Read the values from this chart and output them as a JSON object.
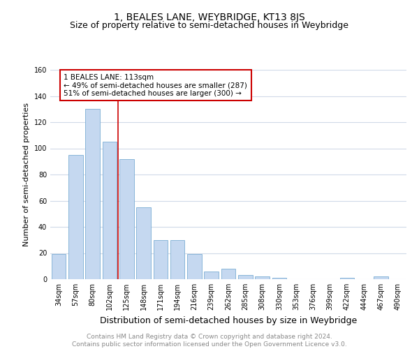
{
  "title": "1, BEALES LANE, WEYBRIDGE, KT13 8JS",
  "subtitle": "Size of property relative to semi-detached houses in Weybridge",
  "xlabel": "Distribution of semi-detached houses by size in Weybridge",
  "ylabel": "Number of semi-detached properties",
  "categories": [
    "34sqm",
    "57sqm",
    "80sqm",
    "102sqm",
    "125sqm",
    "148sqm",
    "171sqm",
    "194sqm",
    "216sqm",
    "239sqm",
    "262sqm",
    "285sqm",
    "308sqm",
    "330sqm",
    "353sqm",
    "376sqm",
    "399sqm",
    "422sqm",
    "444sqm",
    "467sqm",
    "490sqm"
  ],
  "values": [
    19,
    95,
    130,
    105,
    92,
    55,
    30,
    30,
    19,
    6,
    8,
    3,
    2,
    1,
    0,
    0,
    0,
    1,
    0,
    2,
    0
  ],
  "bar_color": "#c5d8f0",
  "bar_edge_color": "#7badd4",
  "vline_color": "#cc0000",
  "annotation_text": "1 BEALES LANE: 113sqm\n← 49% of semi-detached houses are smaller (287)\n51% of semi-detached houses are larger (300) →",
  "annotation_box_color": "#ffffff",
  "annotation_box_edge": "#cc0000",
  "ylim": [
    0,
    160
  ],
  "yticks": [
    0,
    20,
    40,
    60,
    80,
    100,
    120,
    140,
    160
  ],
  "footer_text": "Contains HM Land Registry data © Crown copyright and database right 2024.\nContains public sector information licensed under the Open Government Licence v3.0.",
  "bg_color": "#ffffff",
  "grid_color": "#d0dae8",
  "title_fontsize": 10,
  "subtitle_fontsize": 9,
  "xlabel_fontsize": 9,
  "ylabel_fontsize": 8,
  "tick_fontsize": 7,
  "annotation_fontsize": 7.5,
  "footer_fontsize": 6.5
}
